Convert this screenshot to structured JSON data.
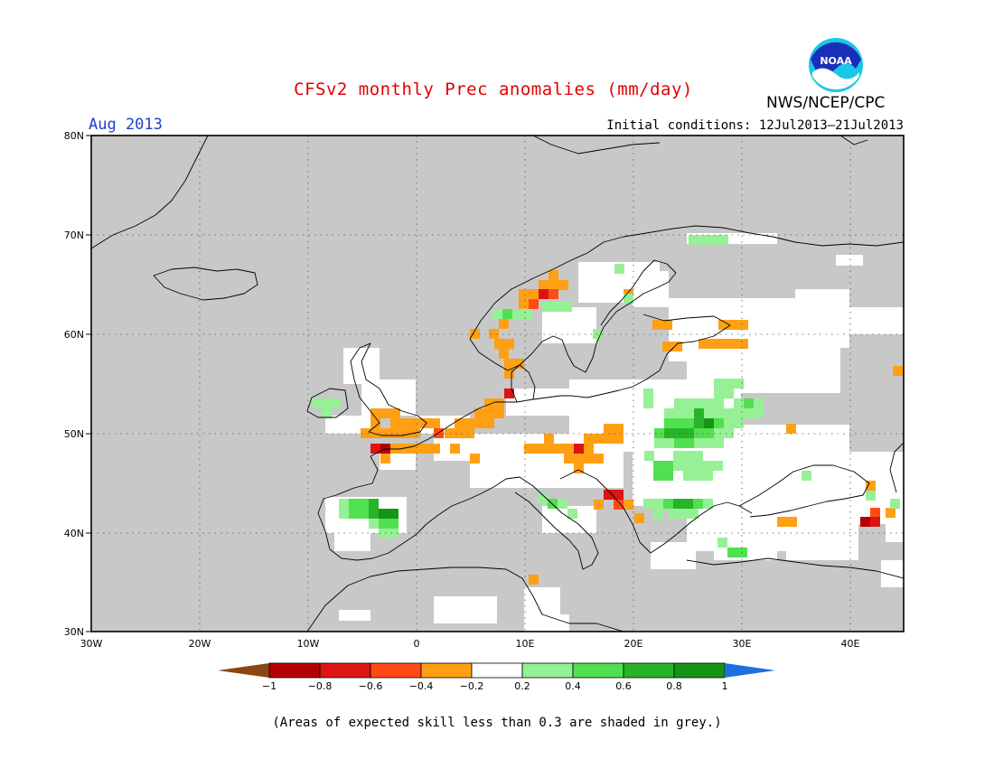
{
  "header": {
    "title": "CFSv2 monthly Prec anomalies (mm/day)",
    "period": "Aug 2013",
    "initial_conditions": "Initial conditions: 12Jul2013–21Jul2013",
    "agency": "NWS/NCEP/CPC",
    "logo_text": "NOAA"
  },
  "map": {
    "lon_range": [
      -30,
      45
    ],
    "lat_range": [
      30,
      80
    ],
    "lat_ticks": [
      "30N",
      "40N",
      "50N",
      "60N",
      "70N",
      "80N"
    ],
    "lon_ticks": [
      "30W",
      "20W",
      "10W",
      "0",
      "10E",
      "20E",
      "30E",
      "40E"
    ],
    "grey_mask_color": "#c8c8c8"
  },
  "legend": {
    "tick_labels": [
      "−1",
      "−0.8",
      "−0.6",
      "−0.4",
      "−0.2",
      "0.2",
      "0.4",
      "0.6",
      "0.8",
      "1"
    ],
    "colors": [
      "#8b4513",
      "#b40000",
      "#dc1414",
      "#ff4a14",
      "#ffa014",
      "#ffffff",
      "#96f096",
      "#50e050",
      "#28b428",
      "#149614",
      "#1e6fe0"
    ]
  },
  "footnote": "(Areas of expected skill less than 0.3 are shaded in grey.)"
}
